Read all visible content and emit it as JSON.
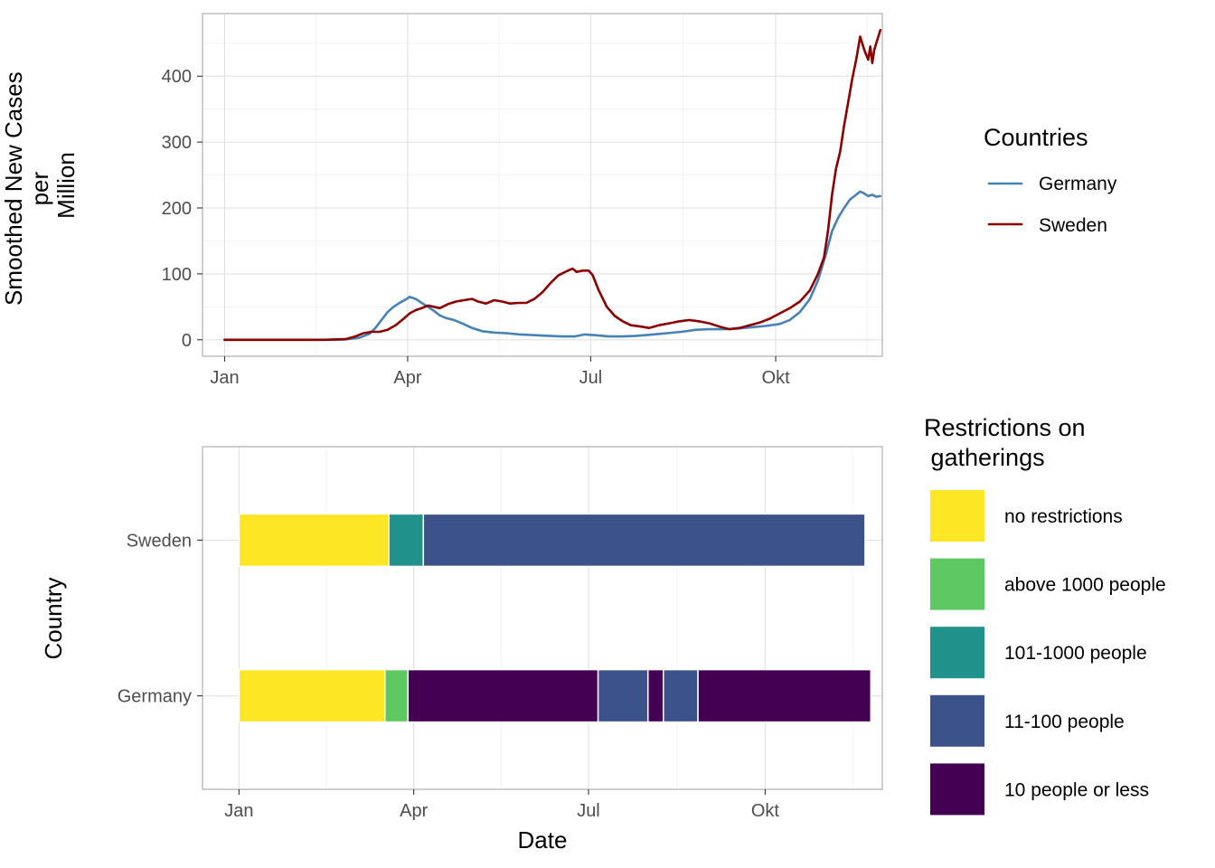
{
  "chart_data": [
    {
      "type": "line",
      "ylabel_lines": [
        "Smoothed New Cases",
        "per",
        "Million"
      ],
      "xlabel": "",
      "x_ticks": [
        "Jan",
        "Apr",
        "Jul",
        "Okt"
      ],
      "x_tick_dates": [
        "2020-01-01",
        "2020-04-01",
        "2020-07-01",
        "2020-10-01"
      ],
      "xlim": [
        "2019-12-21",
        "2020-11-23"
      ],
      "y_ticks": [
        0,
        100,
        200,
        300,
        400
      ],
      "ylim": [
        -25,
        495
      ],
      "grid": true,
      "legend_title": "Countries",
      "legend_position": "right",
      "series": [
        {
          "name": "Germany",
          "color": "#4682b4",
          "points": [
            [
              "2020-01-01",
              0
            ],
            [
              "2020-02-01",
              0
            ],
            [
              "2020-02-20",
              0
            ],
            [
              "2020-03-01",
              0.5
            ],
            [
              "2020-03-08",
              3
            ],
            [
              "2020-03-13",
              9
            ],
            [
              "2020-03-16",
              18
            ],
            [
              "2020-03-19",
              30
            ],
            [
              "2020-03-22",
              42
            ],
            [
              "2020-03-25",
              50
            ],
            [
              "2020-03-28",
              56
            ],
            [
              "2020-03-31",
              61
            ],
            [
              "2020-04-02",
              65
            ],
            [
              "2020-04-05",
              62
            ],
            [
              "2020-04-08",
              56
            ],
            [
              "2020-04-11",
              50
            ],
            [
              "2020-04-14",
              44
            ],
            [
              "2020-04-17",
              37
            ],
            [
              "2020-04-20",
              33
            ],
            [
              "2020-04-24",
              30
            ],
            [
              "2020-04-28",
              25
            ],
            [
              "2020-05-03",
              18
            ],
            [
              "2020-05-08",
              13
            ],
            [
              "2020-05-14",
              11
            ],
            [
              "2020-05-20",
              10
            ],
            [
              "2020-05-27",
              8
            ],
            [
              "2020-06-03",
              7
            ],
            [
              "2020-06-10",
              6
            ],
            [
              "2020-06-17",
              5
            ],
            [
              "2020-06-23",
              5
            ],
            [
              "2020-06-28",
              8
            ],
            [
              "2020-07-03",
              7
            ],
            [
              "2020-07-10",
              5
            ],
            [
              "2020-07-17",
              5
            ],
            [
              "2020-07-24",
              6
            ],
            [
              "2020-08-01",
              8
            ],
            [
              "2020-08-08",
              10
            ],
            [
              "2020-08-15",
              12
            ],
            [
              "2020-08-22",
              15
            ],
            [
              "2020-08-29",
              16
            ],
            [
              "2020-09-05",
              16
            ],
            [
              "2020-09-12",
              17
            ],
            [
              "2020-09-19",
              19
            ],
            [
              "2020-09-26",
              21
            ],
            [
              "2020-10-03",
              24
            ],
            [
              "2020-10-08",
              30
            ],
            [
              "2020-10-13",
              42
            ],
            [
              "2020-10-18",
              62
            ],
            [
              "2020-10-22",
              90
            ],
            [
              "2020-10-26",
              130
            ],
            [
              "2020-10-29",
              165
            ],
            [
              "2020-11-01",
              185
            ],
            [
              "2020-11-04",
              200
            ],
            [
              "2020-11-07",
              213
            ],
            [
              "2020-11-10",
              220
            ],
            [
              "2020-11-12",
              225
            ],
            [
              "2020-11-14",
              222
            ],
            [
              "2020-11-16",
              218
            ],
            [
              "2020-11-18",
              220
            ],
            [
              "2020-11-20",
              217
            ],
            [
              "2020-11-22",
              218
            ]
          ]
        },
        {
          "name": "Sweden",
          "color": "#8b0000",
          "points": [
            [
              "2020-01-01",
              0
            ],
            [
              "2020-02-01",
              0
            ],
            [
              "2020-02-20",
              0
            ],
            [
              "2020-03-01",
              1
            ],
            [
              "2020-03-06",
              5
            ],
            [
              "2020-03-10",
              10
            ],
            [
              "2020-03-14",
              12
            ],
            [
              "2020-03-18",
              12
            ],
            [
              "2020-03-22",
              15
            ],
            [
              "2020-03-26",
              22
            ],
            [
              "2020-03-30",
              32
            ],
            [
              "2020-04-02",
              40
            ],
            [
              "2020-04-05",
              45
            ],
            [
              "2020-04-08",
              48
            ],
            [
              "2020-04-11",
              52
            ],
            [
              "2020-04-14",
              50
            ],
            [
              "2020-04-17",
              48
            ],
            [
              "2020-04-21",
              54
            ],
            [
              "2020-04-25",
              58
            ],
            [
              "2020-04-29",
              60
            ],
            [
              "2020-05-03",
              62
            ],
            [
              "2020-05-06",
              58
            ],
            [
              "2020-05-10",
              55
            ],
            [
              "2020-05-14",
              60
            ],
            [
              "2020-05-18",
              58
            ],
            [
              "2020-05-22",
              55
            ],
            [
              "2020-05-26",
              56
            ],
            [
              "2020-05-30",
              56
            ],
            [
              "2020-06-03",
              62
            ],
            [
              "2020-06-07",
              72
            ],
            [
              "2020-06-11",
              86
            ],
            [
              "2020-06-15",
              98
            ],
            [
              "2020-06-19",
              104
            ],
            [
              "2020-06-22",
              108
            ],
            [
              "2020-06-24",
              103
            ],
            [
              "2020-06-27",
              105
            ],
            [
              "2020-06-30",
              105
            ],
            [
              "2020-07-02",
              98
            ],
            [
              "2020-07-05",
              75
            ],
            [
              "2020-07-09",
              50
            ],
            [
              "2020-07-13",
              36
            ],
            [
              "2020-07-17",
              28
            ],
            [
              "2020-07-21",
              22
            ],
            [
              "2020-07-26",
              20
            ],
            [
              "2020-07-30",
              18
            ],
            [
              "2020-08-04",
              22
            ],
            [
              "2020-08-09",
              25
            ],
            [
              "2020-08-14",
              28
            ],
            [
              "2020-08-19",
              30
            ],
            [
              "2020-08-24",
              28
            ],
            [
              "2020-08-29",
              25
            ],
            [
              "2020-09-03",
              20
            ],
            [
              "2020-09-08",
              16
            ],
            [
              "2020-09-13",
              18
            ],
            [
              "2020-09-18",
              22
            ],
            [
              "2020-09-23",
              26
            ],
            [
              "2020-09-28",
              32
            ],
            [
              "2020-10-03",
              40
            ],
            [
              "2020-10-08",
              48
            ],
            [
              "2020-10-13",
              58
            ],
            [
              "2020-10-18",
              75
            ],
            [
              "2020-10-22",
              100
            ],
            [
              "2020-10-25",
              125
            ],
            [
              "2020-10-27",
              165
            ],
            [
              "2020-10-29",
              220
            ],
            [
              "2020-10-31",
              260
            ],
            [
              "2020-11-02",
              285
            ],
            [
              "2020-11-04",
              325
            ],
            [
              "2020-11-06",
              360
            ],
            [
              "2020-11-08",
              395
            ],
            [
              "2020-11-10",
              425
            ],
            [
              "2020-11-12",
              460
            ],
            [
              "2020-11-14",
              440
            ],
            [
              "2020-11-16",
              425
            ],
            [
              "2020-11-17",
              445
            ],
            [
              "2020-11-18",
              420
            ],
            [
              "2020-11-19",
              440
            ],
            [
              "2020-11-20",
              450
            ],
            [
              "2020-11-21",
              460
            ],
            [
              "2020-11-22",
              470
            ]
          ]
        }
      ]
    },
    {
      "type": "bar",
      "orientation": "horizontal",
      "xlabel": "Date",
      "ylabel": "Country",
      "x_ticks": [
        "Jan",
        "Apr",
        "Jul",
        "Okt"
      ],
      "x_tick_dates": [
        "2020-01-01",
        "2020-04-01",
        "2020-07-01",
        "2020-10-01"
      ],
      "xlim": [
        "2019-12-13",
        "2020-12-01"
      ],
      "categories": [
        "Sweden",
        "Germany"
      ],
      "grid": true,
      "legend_title_lines": [
        "Restrictions on",
        " gatherings"
      ],
      "legend_position": "right",
      "levels": [
        {
          "label": "no restrictions",
          "color": "#fde725"
        },
        {
          "label": "above 1000 people",
          "color": "#5ec962"
        },
        {
          "label": "101-1000 people",
          "color": "#21918c"
        },
        {
          "label": "11-100 people",
          "color": "#3b528b"
        },
        {
          "label": "10 people or less",
          "color": "#440154"
        }
      ],
      "segments": [
        {
          "country": "Sweden",
          "start": "2020-01-01",
          "end": "2020-03-19",
          "level": "no restrictions"
        },
        {
          "country": "Sweden",
          "start": "2020-03-19",
          "end": "2020-04-06",
          "level": "101-1000 people"
        },
        {
          "country": "Sweden",
          "start": "2020-04-06",
          "end": "2020-11-22",
          "level": "11-100 people"
        },
        {
          "country": "Germany",
          "start": "2020-01-01",
          "end": "2020-03-17",
          "level": "no restrictions"
        },
        {
          "country": "Germany",
          "start": "2020-03-17",
          "end": "2020-03-29",
          "level": "above 1000 people"
        },
        {
          "country": "Germany",
          "start": "2020-03-29",
          "end": "2020-07-06",
          "level": "10 people or less"
        },
        {
          "country": "Germany",
          "start": "2020-07-06",
          "end": "2020-08-01",
          "level": "11-100 people"
        },
        {
          "country": "Germany",
          "start": "2020-08-01",
          "end": "2020-08-09",
          "level": "10 people or less"
        },
        {
          "country": "Germany",
          "start": "2020-08-09",
          "end": "2020-08-27",
          "level": "11-100 people"
        },
        {
          "country": "Germany",
          "start": "2020-08-27",
          "end": "2020-11-25",
          "level": "10 people or less"
        }
      ]
    }
  ]
}
